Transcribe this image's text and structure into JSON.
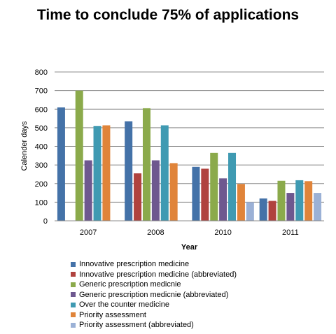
{
  "chart_data": {
    "type": "bar",
    "title": "Time to conclude 75% of applications",
    "xlabel": "Year",
    "ylabel": "Calender days",
    "ylim": [
      0,
      800
    ],
    "yticks": [
      0,
      100,
      200,
      300,
      400,
      500,
      600,
      700,
      800
    ],
    "grid": true,
    "legend_position": "bottom",
    "categories": [
      "2007",
      "2008",
      "2010",
      "2011"
    ],
    "series": [
      {
        "name": "Innovative prescription medicine",
        "color": "#4472A8",
        "values": [
          610,
          535,
          290,
          120
        ]
      },
      {
        "name": "Innovative prescription medicine (abbreviated)",
        "color": "#B0423E",
        "values": [
          null,
          255,
          280,
          107
        ]
      },
      {
        "name": "Generic prescription medicnie",
        "color": "#8BAA4B",
        "values": [
          700,
          605,
          365,
          215
        ]
      },
      {
        "name": "Generic prescription medicnie (abbreviated)",
        "color": "#6E588F",
        "values": [
          325,
          325,
          228,
          150
        ]
      },
      {
        "name": "Over the counter medicine",
        "color": "#3F9AB2",
        "values": [
          510,
          513,
          365,
          218
        ]
      },
      {
        "name": "Priority assessment",
        "color": "#E0843A",
        "values": [
          513,
          310,
          198,
          213
        ]
      },
      {
        "name": "Priority assessment (abbreviated)",
        "color": "#9BB1D6",
        "values": [
          null,
          null,
          100,
          150
        ]
      }
    ]
  }
}
